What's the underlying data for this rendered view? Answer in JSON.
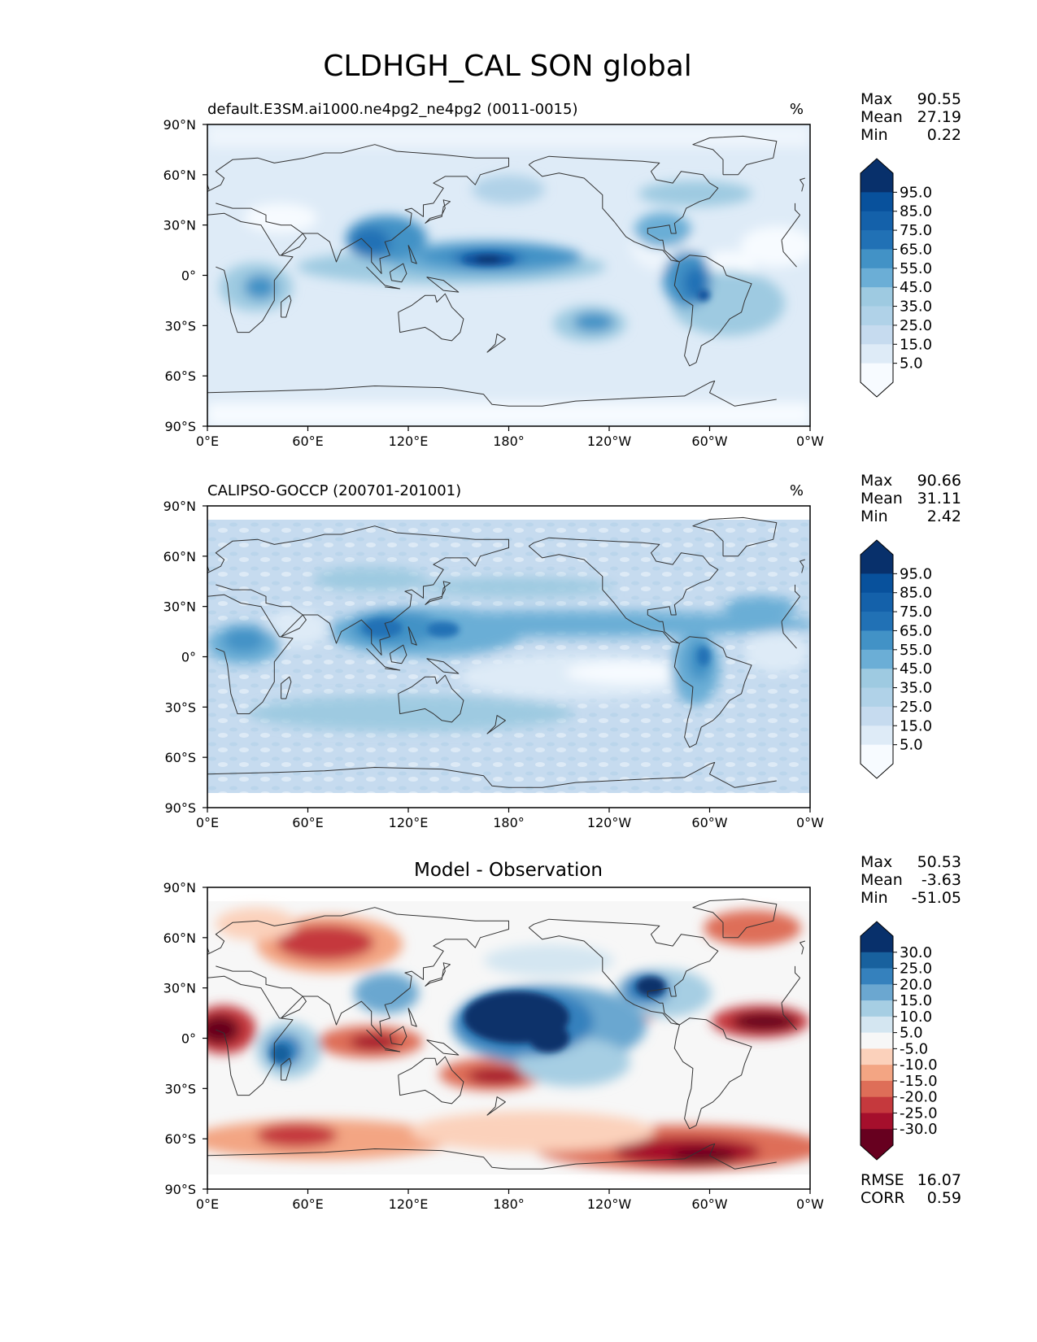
{
  "figure_title": "CLDHGH_CAL SON global",
  "axis_ticks": {
    "x": [
      "0°E",
      "60°E",
      "120°E",
      "180°",
      "120°W",
      "60°W",
      "0°W"
    ],
    "y": [
      "90°N",
      "60°N",
      "30°N",
      "0°",
      "30°S",
      "60°S",
      "90°S"
    ]
  },
  "colors": {
    "seq": [
      "#f7fbff",
      "#deebf7",
      "#c6dbef",
      "#b0d2e8",
      "#9ecae1",
      "#6baed6",
      "#4292c6",
      "#2171b5",
      "#1461aa",
      "#08519c",
      "#08306b"
    ],
    "div": [
      "#67001f",
      "#a50f2c",
      "#c5393d",
      "#de6e58",
      "#f3a583",
      "#fbd1bb",
      "#f7f7f7",
      "#d4e6f1",
      "#a6cee3",
      "#6ba7d0",
      "#3581bd",
      "#18619e",
      "#08306b"
    ],
    "coast": "#333333"
  },
  "panels": [
    {
      "title": "default.E3SM.ai1000.ne4pg2_ne4pg2 (0011-0015)",
      "units": "%",
      "stats": [
        {
          "label": "Max",
          "value": "90.55"
        },
        {
          "label": "Mean",
          "value": "27.19"
        },
        {
          "label": "Min",
          "value": "0.22"
        }
      ],
      "colorbar_ticks": [
        "95.0",
        "85.0",
        "75.0",
        "65.0",
        "55.0",
        "45.0",
        "35.0",
        "25.0",
        "15.0",
        "5.0"
      ]
    },
    {
      "title": "CALIPSO-GOCCP (200701-201001)",
      "units": "%",
      "stats": [
        {
          "label": "Max",
          "value": "90.66"
        },
        {
          "label": "Mean",
          "value": "31.11"
        },
        {
          "label": "Min",
          "value": "2.42"
        }
      ],
      "colorbar_ticks": [
        "95.0",
        "85.0",
        "75.0",
        "65.0",
        "55.0",
        "45.0",
        "35.0",
        "25.0",
        "15.0",
        "5.0"
      ]
    },
    {
      "title": "Model - Observation",
      "units": "",
      "stats": [
        {
          "label": "Max",
          "value": "50.53"
        },
        {
          "label": "Mean",
          "value": "-3.63"
        },
        {
          "label": "Min",
          "value": "-51.05"
        }
      ],
      "colorbar_ticks": [
        "30.0",
        "25.0",
        "20.0",
        "15.0",
        "10.0",
        "5.0",
        "-5.0",
        "-10.0",
        "-15.0",
        "-20.0",
        "-25.0",
        "-30.0"
      ],
      "metrics": [
        {
          "label": "RMSE",
          "value": "16.07"
        },
        {
          "label": "CORR",
          "value": "0.59"
        }
      ]
    }
  ]
}
